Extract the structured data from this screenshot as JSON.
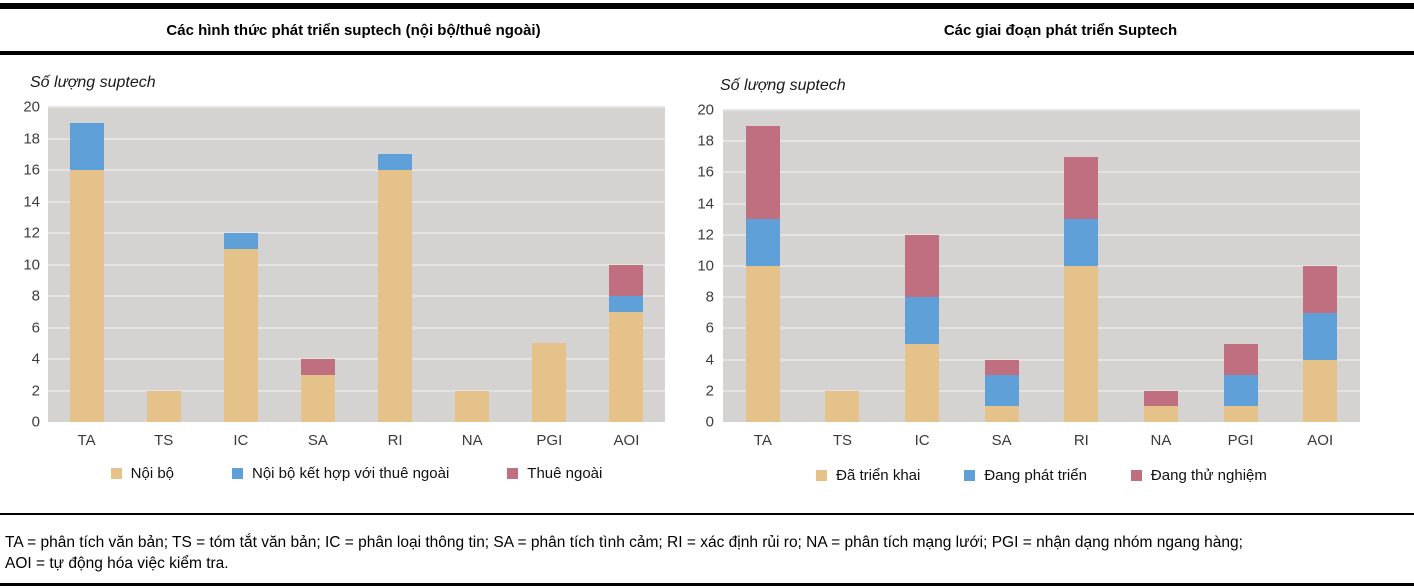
{
  "chart_data": [
    {
      "type": "bar",
      "stacked": true,
      "title": "Các hình thức phát triển suptech (nội bộ/thuê ngoài)",
      "ylabel": "Số lượng suptech",
      "xlabel": "",
      "categories": [
        "TA",
        "TS",
        "IC",
        "SA",
        "RI",
        "NA",
        "PGI",
        "AOI"
      ],
      "series": [
        {
          "name": "Nội bộ",
          "color": "#e6c28b",
          "values": [
            16,
            2,
            11,
            3,
            16,
            2,
            5,
            7
          ]
        },
        {
          "name": "Nội bộ kết hợp với thuê ngoài",
          "color": "#60a0d8",
          "values": [
            3,
            0,
            1,
            0,
            1,
            0,
            0,
            1
          ]
        },
        {
          "name": "Thuê ngoài",
          "color": "#c06f80",
          "values": [
            0,
            0,
            0,
            1,
            0,
            0,
            0,
            2
          ]
        }
      ],
      "totals": [
        19,
        2,
        12,
        4,
        17,
        2,
        5,
        10
      ],
      "ylim": [
        0,
        20
      ],
      "ytick_step": 2,
      "grid": true,
      "legend_position": "bottom"
    },
    {
      "type": "bar",
      "stacked": true,
      "title": "Các giai đoạn phát triển Suptech",
      "ylabel": "Số lượng suptech",
      "xlabel": "",
      "categories": [
        "TA",
        "TS",
        "IC",
        "SA",
        "RI",
        "NA",
        "PGI",
        "AOI"
      ],
      "series": [
        {
          "name": "Đã triển khai",
          "color": "#e6c28b",
          "values": [
            10,
            2,
            5,
            1,
            10,
            1,
            1,
            4
          ]
        },
        {
          "name": "Đang phát triển",
          "color": "#60a0d8",
          "values": [
            3,
            0,
            3,
            2,
            3,
            0,
            2,
            3
          ]
        },
        {
          "name": "Đang thử nghiệm",
          "color": "#c06f80",
          "values": [
            6,
            0,
            4,
            1,
            4,
            1,
            2,
            3
          ]
        }
      ],
      "totals": [
        19,
        2,
        12,
        4,
        17,
        2,
        5,
        10
      ],
      "ylim": [
        0,
        20
      ],
      "ytick_step": 2,
      "grid": true,
      "legend_position": "bottom"
    }
  ],
  "footnote": {
    "line1": "TA = phân tích văn bản; TS = tóm tắt văn bản; IC = phân loại thông tin; SA = phân tích tình cảm; RI = xác định rủi ro; NA = phân tích mạng lưới; PGI = nhận dạng nhóm ngang hàng;",
    "line2": "AOI = tự động hóa việc kiểm tra."
  },
  "colors": {
    "series_tan": "#e6c28b",
    "series_blue": "#60a0d8",
    "series_pink": "#c06f80",
    "plot_background": "#d5d3d2",
    "gridline": "#e5e3e2",
    "rule": "#000000"
  }
}
